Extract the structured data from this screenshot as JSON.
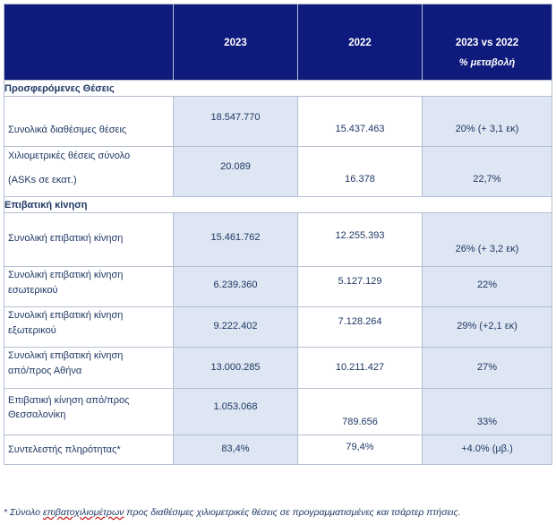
{
  "header": {
    "col_2023": "2023",
    "col_2022": "2022",
    "col_change_line1": "2023 vs 2022",
    "col_change_line2": "% μεταβολή"
  },
  "sections": {
    "seats": "Προσφερόμενες Θέσεις",
    "traffic": "Επιβατική κίνηση"
  },
  "rows": [
    {
      "label": "Συνολικά διαθέσιμες θέσεις",
      "label2": "",
      "v2023": "18.547.770",
      "v2022": "15.437.463",
      "change": "20% (+ 3,1 εκ)"
    },
    {
      "label": "Χιλιομετρικές θέσεις σύνολο",
      "label2": "(ASKs σε εκατ.)",
      "v2023": "20.089",
      "v2022": "16.378",
      "change": "22,7%"
    },
    {
      "label": "Συνολική επιβατική κίνηση",
      "label2": "",
      "v2023": "15.461.762",
      "v2022": "12.255.393",
      "change": "26% (+ 3,2 εκ)"
    },
    {
      "label": "Συνολική επιβατική κίνηση",
      "label2": "εσωτερικού",
      "v2023": "6.239.360",
      "v2022": "5.127.129",
      "change": "22%"
    },
    {
      "label": "Συνολική επιβατική κίνηση",
      "label2": "εξωτερικού",
      "v2023": "9.222.402",
      "v2022": "7.128.264",
      "change": "29% (+2,1 εκ)"
    },
    {
      "label": "Συνολική επιβατική κίνηση",
      "label2": "από/προς Αθήνα",
      "v2023": "13.000.285",
      "v2022": "10.211.427",
      "change": "27%"
    },
    {
      "label": "Επιβατική κίνηση  από/προς",
      "label2": "Θεσσαλονίκη",
      "v2023": "1.053.068",
      "v2022": "789.656",
      "change": "33%"
    },
    {
      "label": "Συντελεστής πληρότητας*",
      "label2": "",
      "v2023": "83,4%",
      "v2022": "79,4%",
      "change": "+4.0% (μβ.)"
    }
  ],
  "footnote": {
    "prefix": "* Σύνολο ",
    "underlined": "επιβατοχιλιομέτρων",
    "suffix": " προς διαθέσιμες χιλιομετρικές θέσεις σε προγραμματισμένες και τσάρτερ πτήσεις."
  }
}
